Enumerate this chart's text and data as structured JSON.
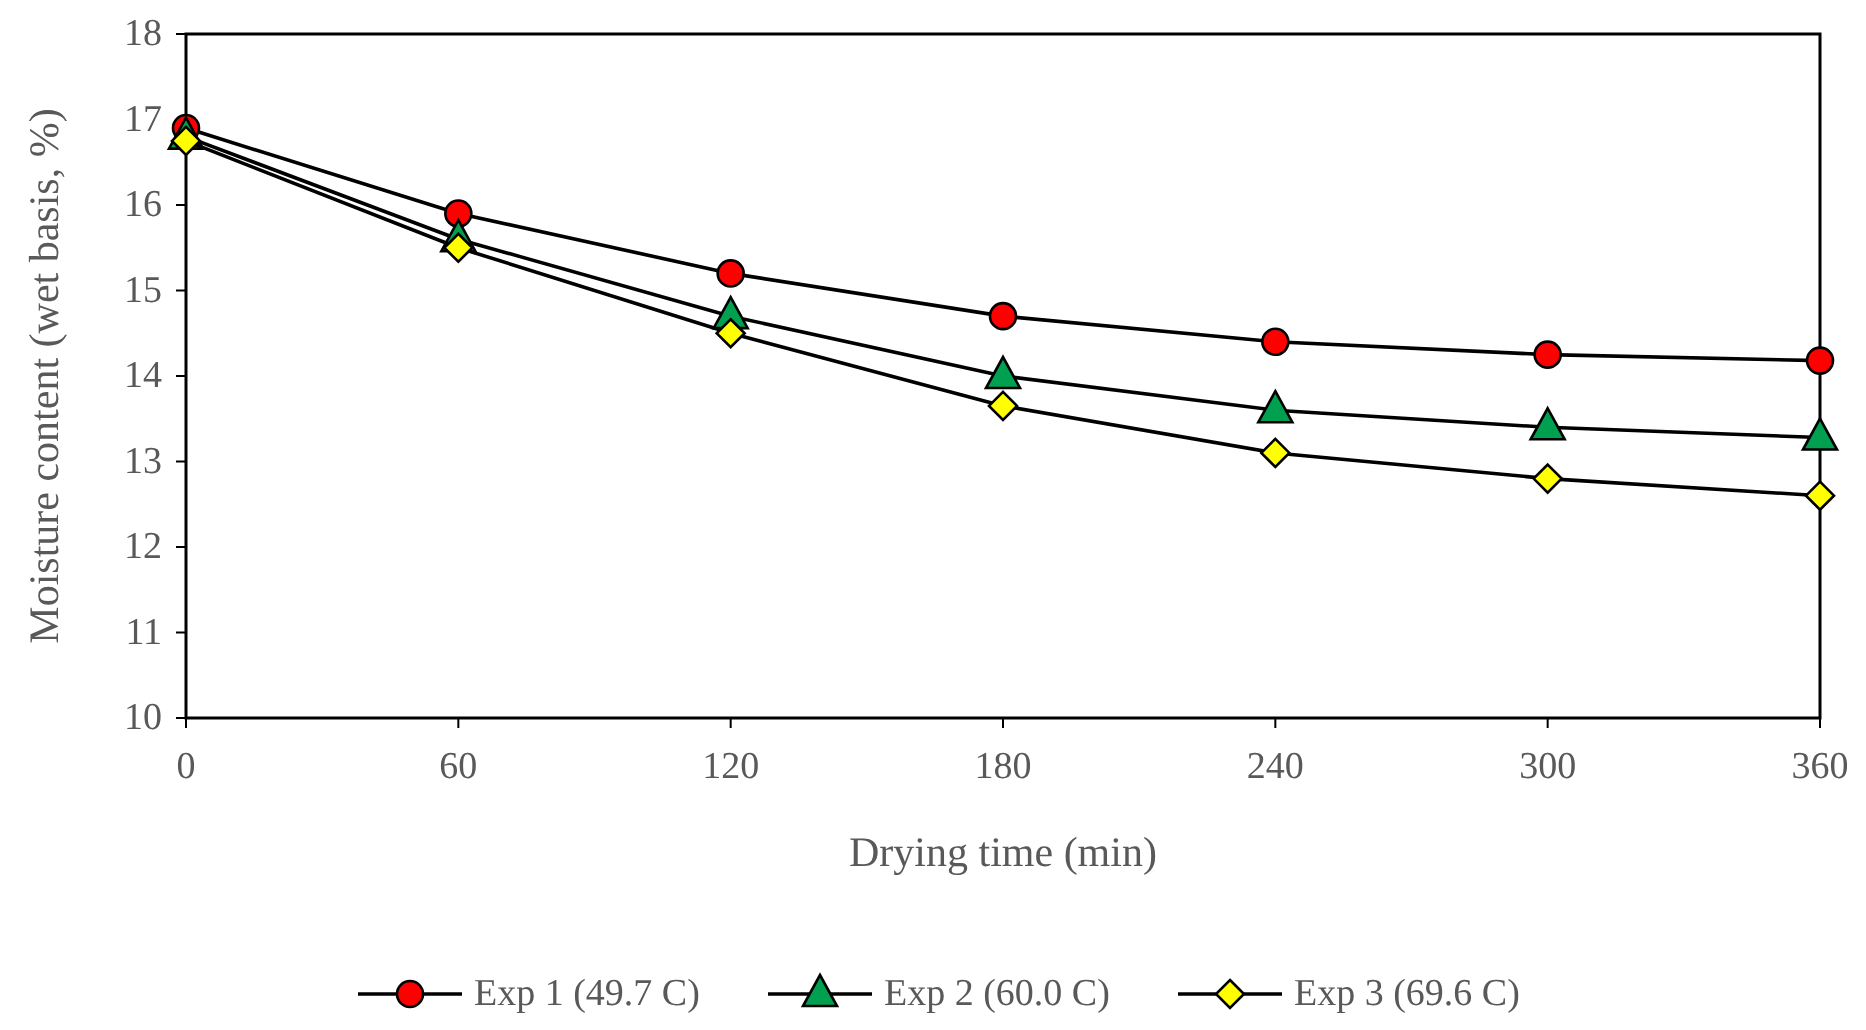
{
  "chart_data": {
    "type": "line",
    "xlabel": "Drying time (min)",
    "ylabel": "Moisture content (wet basis, %)",
    "x": [
      0,
      60,
      120,
      180,
      240,
      300,
      360
    ],
    "xlim": [
      0,
      360
    ],
    "xticks": [
      0,
      60,
      120,
      180,
      240,
      300,
      360
    ],
    "ylim": [
      10,
      18
    ],
    "yticks": [
      10,
      11,
      12,
      13,
      14,
      15,
      16,
      17,
      18
    ],
    "grid": false,
    "legend": "bottom",
    "line_style": "solid",
    "series": [
      {
        "name": "Exp 1 (49.7 C)",
        "color": "#ff0000",
        "marker": "circle",
        "values": [
          16.9,
          15.9,
          15.2,
          14.7,
          14.4,
          14.25,
          14.18
        ]
      },
      {
        "name": "Exp 2 (60.0 C)",
        "color": "#00a050",
        "marker": "triangle",
        "values": [
          16.8,
          15.6,
          14.7,
          14.0,
          13.6,
          13.4,
          13.28
        ]
      },
      {
        "name": "Exp 3 (69.6 C)",
        "color": "#ffff00",
        "marker": "diamond",
        "values": [
          16.75,
          15.5,
          14.5,
          13.65,
          13.1,
          12.8,
          12.6
        ]
      }
    ]
  }
}
